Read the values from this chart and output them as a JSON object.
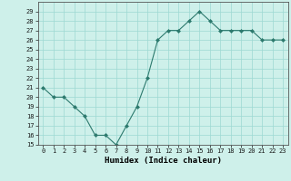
{
  "x": [
    0,
    1,
    2,
    3,
    4,
    5,
    6,
    7,
    8,
    9,
    10,
    11,
    12,
    13,
    14,
    15,
    16,
    17,
    18,
    19,
    20,
    21,
    22,
    23
  ],
  "y": [
    21,
    20,
    20,
    19,
    18,
    16,
    16,
    15,
    17,
    19,
    22,
    26,
    27,
    27,
    28,
    29,
    28,
    27,
    27,
    27,
    27,
    26,
    26,
    26
  ],
  "xlabel": "Humidex (Indice chaleur)",
  "line_color": "#2d7a6e",
  "marker": "D",
  "marker_size": 2.0,
  "bg_color": "#cef0ea",
  "grid_color": "#9dd9d2",
  "ylim": [
    15,
    30
  ],
  "xlim": [
    -0.5,
    23.5
  ],
  "yticks": [
    15,
    16,
    17,
    18,
    19,
    20,
    21,
    22,
    23,
    24,
    25,
    26,
    27,
    28,
    29
  ],
  "xticks": [
    0,
    1,
    2,
    3,
    4,
    5,
    6,
    7,
    8,
    9,
    10,
    11,
    12,
    13,
    14,
    15,
    16,
    17,
    18,
    19,
    20,
    21,
    22,
    23
  ],
  "xtick_labels": [
    "0",
    "1",
    "2",
    "3",
    "4",
    "5",
    "6",
    "7",
    "8",
    "9",
    "10",
    "11",
    "12",
    "13",
    "14",
    "15",
    "16",
    "17",
    "18",
    "19",
    "20",
    "21",
    "22",
    "23"
  ]
}
